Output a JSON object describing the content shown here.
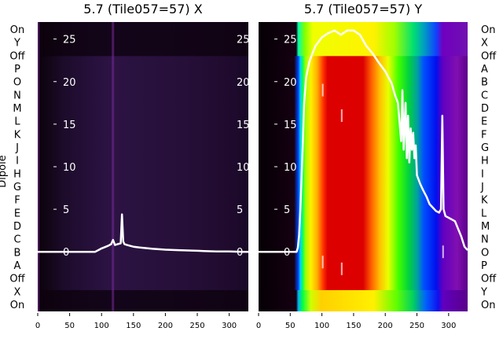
{
  "chart_data": [
    {
      "type": "heatmap",
      "title": "5.7 (Tile057=57) X",
      "ylabel": "Dipole",
      "dipole_labels": [
        "On",
        "X",
        "Off",
        "A",
        "B",
        "C",
        "D",
        "E",
        "F",
        "G",
        "H",
        "I",
        "J",
        "K",
        "L",
        "M",
        "N",
        "O",
        "P",
        "Off",
        "Y",
        "On"
      ],
      "x_ticks": [
        0,
        50,
        100,
        150,
        200,
        250,
        300
      ],
      "y_ticks": [
        0,
        5,
        10,
        15,
        20,
        25
      ],
      "xlim": [
        0,
        330
      ],
      "ylim": [
        -7,
        27
      ],
      "colormap": "gnuplot",
      "series": [
        {
          "x": [
            0,
            30,
            60,
            75,
            90,
            100,
            110,
            115,
            118,
            121,
            125,
            130,
            132,
            134,
            136,
            140,
            145,
            150,
            160,
            180,
            200,
            220,
            240,
            260,
            280,
            300,
            320,
            330
          ],
          "y": [
            0,
            0,
            0,
            0,
            0,
            0.4,
            0.7,
            0.9,
            1.4,
            0.8,
            0.9,
            1.0,
            4.4,
            1.2,
            0.9,
            0.8,
            0.7,
            0.6,
            0.5,
            0.35,
            0.25,
            0.2,
            0.15,
            0.1,
            0.05,
            0.05,
            0,
            0
          ]
        }
      ]
    },
    {
      "type": "heatmap",
      "title": "5.7 (Tile057=57) Y",
      "dipole_labels": [
        "On",
        "Y",
        "Off",
        "P",
        "O",
        "N",
        "M",
        "L",
        "K",
        "J",
        "I",
        "H",
        "G",
        "F",
        "E",
        "D",
        "C",
        "B",
        "A",
        "Off",
        "X",
        "On"
      ],
      "x_ticks": [
        0,
        50,
        100,
        150,
        200,
        250,
        300
      ],
      "y_ticks": [
        0,
        5,
        10,
        15,
        20,
        25
      ],
      "xlim": [
        0,
        330
      ],
      "ylim": [
        -7,
        27
      ],
      "colormap": "gist_rainbow",
      "series": [
        {
          "x": [
            0,
            30,
            60,
            62,
            64,
            66,
            68,
            70,
            72,
            75,
            80,
            85,
            90,
            100,
            110,
            120,
            130,
            140,
            150,
            160,
            170,
            180,
            190,
            200,
            210,
            215,
            220,
            225,
            227,
            229,
            232,
            234,
            236,
            238,
            240,
            242,
            244,
            246,
            248,
            250,
            255,
            260,
            265,
            270,
            275,
            280,
            285,
            288,
            290,
            292,
            295,
            300,
            310,
            320,
            325,
            330
          ],
          "y": [
            0,
            0,
            0,
            0.5,
            2.0,
            5.0,
            9.0,
            13.0,
            17.5,
            20.5,
            22.3,
            23.3,
            24.2,
            25.2,
            25.7,
            26.0,
            25.5,
            26.0,
            26.0,
            25.5,
            24.2,
            23.3,
            22.2,
            21.2,
            19.8,
            18.5,
            17.5,
            13.0,
            19.0,
            12.0,
            17.5,
            11.0,
            16.0,
            10.5,
            14.5,
            12.0,
            14.0,
            11.0,
            12.5,
            9.0,
            8.0,
            7.2,
            6.5,
            5.6,
            5.2,
            4.8,
            4.6,
            5.0,
            16.0,
            5.0,
            4.2,
            4.0,
            3.6,
            1.8,
            0.6,
            0.2
          ]
        }
      ]
    }
  ]
}
